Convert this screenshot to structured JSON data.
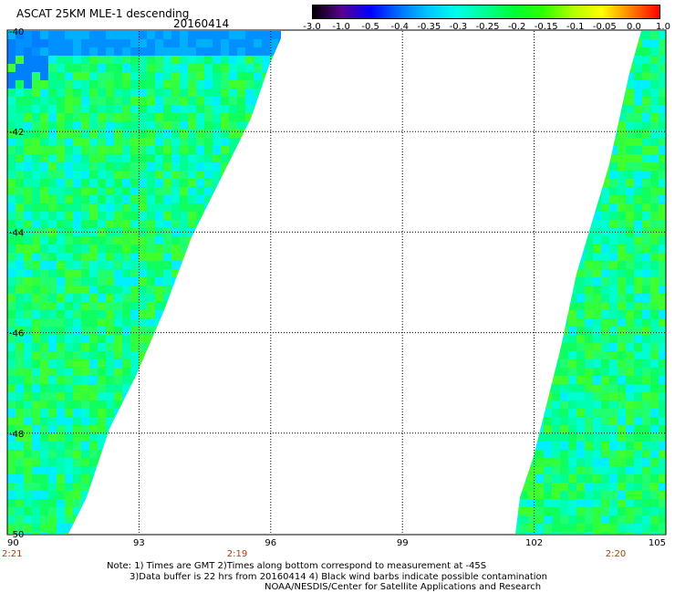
{
  "header": {
    "title": "ASCAT 25KM MLE-1 descending",
    "date": "20160414"
  },
  "colorbar": {
    "labels": [
      "-3.0",
      "-1.0",
      "-0.5",
      "-0.4",
      "-0.35",
      "-0.3",
      "-0.25",
      "-0.2",
      "-0.15",
      "-0.1",
      "-0.05",
      "0.0",
      "1.0"
    ],
    "colors": [
      "#000000",
      "#5a0090",
      "#0000ff",
      "#0070ff",
      "#00c8ff",
      "#00ffe8",
      "#00ff90",
      "#00ff30",
      "#30ff00",
      "#b0ff00",
      "#ffff00",
      "#ff8000",
      "#ff0000"
    ]
  },
  "map": {
    "lat_labels": [
      "-40",
      "-42",
      "-44",
      "-46",
      "-48",
      "-50"
    ],
    "lon_labels": [
      "90",
      "93",
      "96",
      "99",
      "102",
      "105"
    ],
    "time_labels": [
      "2:21",
      "2:19",
      "2:20"
    ],
    "time_color": "#c83200",
    "grid": true
  },
  "footer": {
    "line1": "Note: 1) Times are GMT 2)Times along bottom correspond to measurement at -45S",
    "line2": "3)Data buffer is 22 hrs from 20160414 4) Black wind barbs indicate possible contamination",
    "line3": "NOAA/NESDIS/Center for Satellite Applications and Research"
  }
}
